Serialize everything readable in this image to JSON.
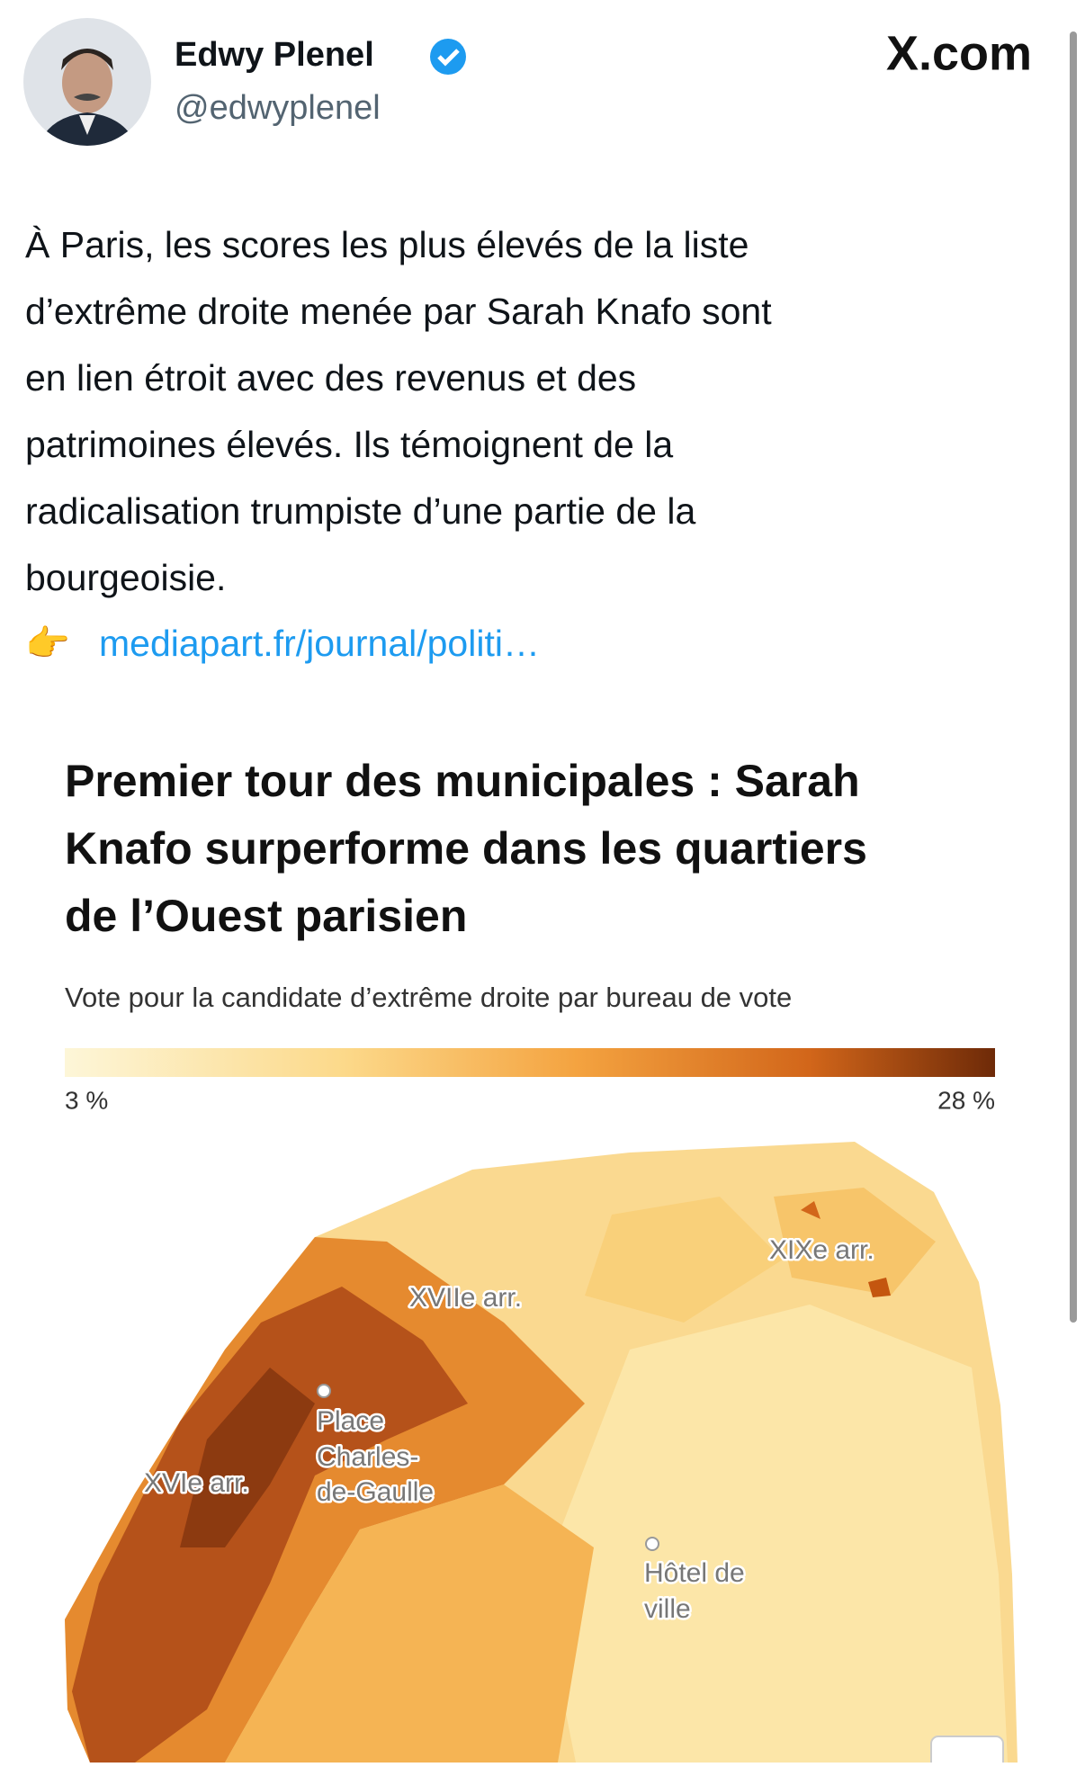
{
  "header": {
    "name": "Edwy Plenel",
    "handle": "@edwyplenel",
    "site": "X.com"
  },
  "tweet": {
    "text_lines": [
      "À Paris, les scores les plus élevés de la liste",
      "d’extrême droite menée par Sarah Knafo sont",
      "en lien étroit avec des revenus et des",
      "patrimoines élevés. Ils témoignent de la",
      "radicalisation trumpiste d’une partie de la",
      "bourgeoisie."
    ],
    "link_icon": "👉",
    "link": "mediapart.fr/journal/politi…"
  },
  "figure": {
    "title_lines": [
      "Premier tour des municipales : Sarah",
      "Knafo surperforme dans les quartiers",
      "de l’Ouest parisien"
    ],
    "subtitle": "Vote pour la candidate d’extrême droite par bureau de vote",
    "scale_min": "3 %",
    "scale_max": "28 %",
    "map_labels": {
      "xvii": "XVIIe arr.",
      "xix": "XIXe arr.",
      "xvi": "XVIe arr.",
      "etoile": [
        "Place",
        "Charles-",
        "de-Gaulle"
      ],
      "hdv": [
        "Hôtel de",
        "ville"
      ]
    }
  }
}
